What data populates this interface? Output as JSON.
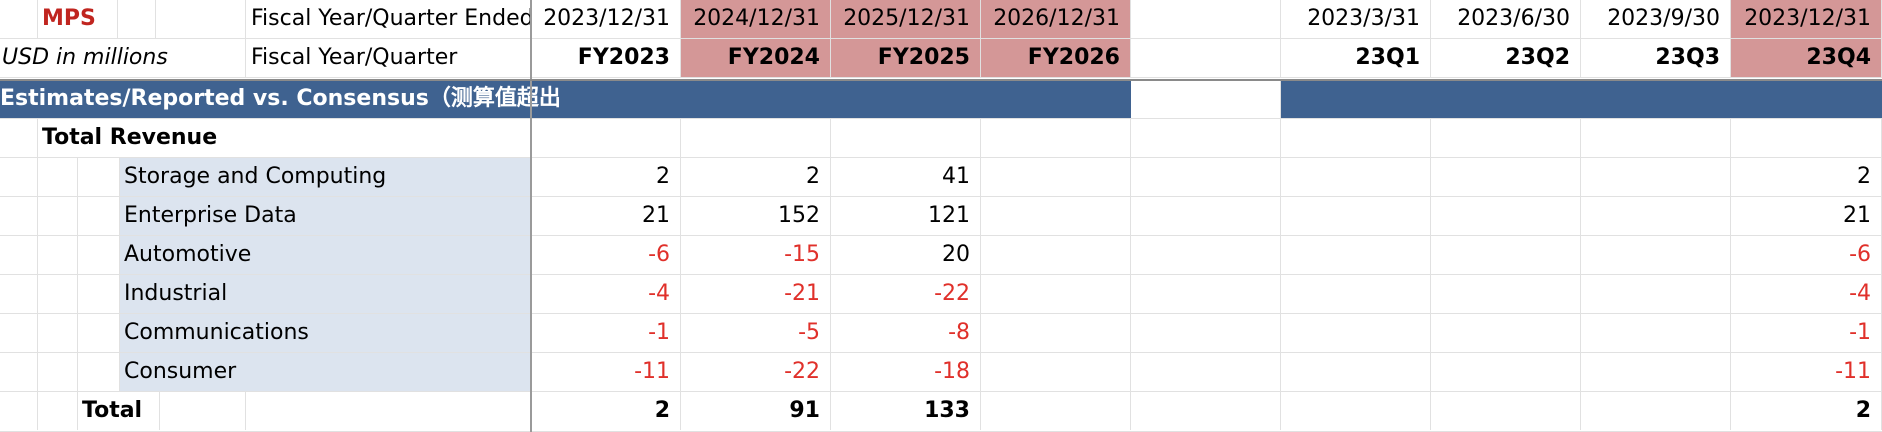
{
  "header": {
    "ticker": "MPS",
    "fiscal_label": "Fiscal Year/Quarter Ended",
    "units_label": "USD in millions",
    "fq_label": "Fiscal Year/Quarter",
    "annual_dates": [
      "2023/12/31",
      "2024/12/31",
      "2025/12/31",
      "2026/12/31"
    ],
    "annual_labels": [
      "FY2023",
      "FY2024",
      "FY2025",
      "FY2026"
    ],
    "quarter_dates": [
      "2023/3/31",
      "2023/6/30",
      "2023/9/30",
      "2023/12/31"
    ],
    "quarter_labels": [
      "23Q1",
      "23Q2",
      "23Q3",
      "23Q4"
    ]
  },
  "section_title": "Estimates/Reported vs. Consensus（测算值超出",
  "group_title": "Total Revenue",
  "rows": [
    {
      "label": "Storage and Computing",
      "annual": [
        "2",
        "2",
        "41",
        ""
      ],
      "quarterly": [
        "",
        "",
        "",
        "2"
      ]
    },
    {
      "label": "Enterprise Data",
      "annual": [
        "21",
        "152",
        "121",
        ""
      ],
      "quarterly": [
        "",
        "",
        "",
        "21"
      ]
    },
    {
      "label": "Automotive",
      "annual": [
        "-6",
        "-15",
        "20",
        ""
      ],
      "quarterly": [
        "",
        "",
        "",
        "-6"
      ]
    },
    {
      "label": "Industrial",
      "annual": [
        "-4",
        "-21",
        "-22",
        ""
      ],
      "quarterly": [
        "",
        "",
        "",
        "-4"
      ]
    },
    {
      "label": "Communications",
      "annual": [
        "-1",
        "-5",
        "-8",
        ""
      ],
      "quarterly": [
        "",
        "",
        "",
        "-1"
      ]
    },
    {
      "label": "Consumer",
      "annual": [
        "-11",
        "-22",
        "-18",
        ""
      ],
      "quarterly": [
        "",
        "",
        "",
        "-11"
      ]
    }
  ],
  "total": {
    "label": "Total",
    "annual": [
      "2",
      "91",
      "133",
      ""
    ],
    "quarterly": [
      "",
      "",
      "",
      "2"
    ]
  },
  "colors": {
    "header_pink": "#d49797",
    "section_blue": "#3f6290",
    "label_blue": "#dce4ef",
    "negative_red": "#e0302a"
  }
}
